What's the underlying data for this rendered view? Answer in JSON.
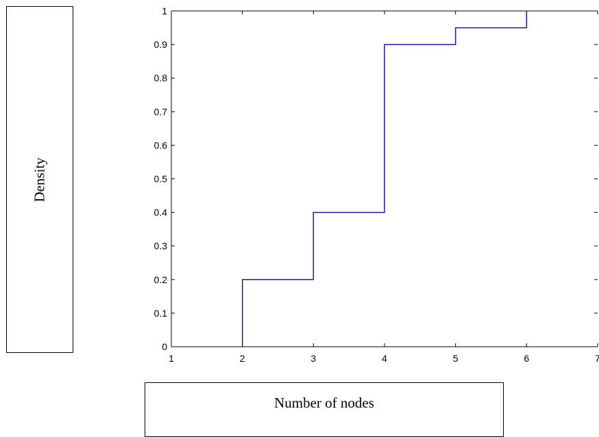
{
  "chart_data": {
    "type": "line",
    "step": true,
    "xlabel": "Number of nodes",
    "ylabel": "Density",
    "title": "",
    "xlim": [
      1,
      7
    ],
    "ylim": [
      0,
      1
    ],
    "xticks": [
      "1",
      "2",
      "3",
      "4",
      "5",
      "6",
      "7"
    ],
    "yticks": [
      "0",
      "0.1",
      "0.2",
      "0.3",
      "0.4",
      "0.5",
      "0.6",
      "0.7",
      "0.8",
      "0.9",
      "1"
    ],
    "grid": false,
    "series": [
      {
        "color": "#1a1aa0",
        "x": [
          2,
          2,
          3,
          3,
          4,
          4,
          5,
          5,
          6,
          6
        ],
        "y": [
          0,
          0.2,
          0.2,
          0.4,
          0.4,
          0.9,
          0.9,
          0.95,
          0.95,
          1.0
        ]
      }
    ]
  }
}
